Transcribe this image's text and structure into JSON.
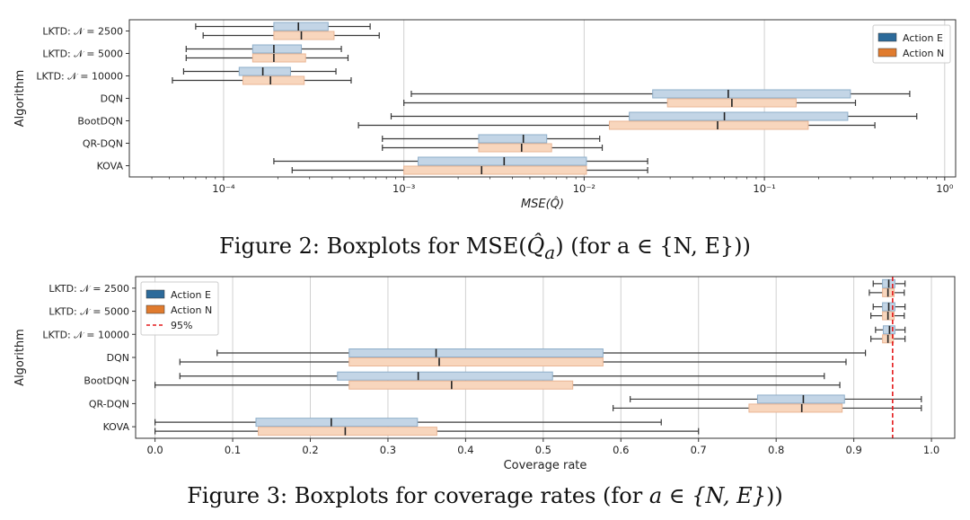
{
  "figure2": {
    "caption_prefix": "Figure 2:  Boxplots for MSE(",
    "caption_math": "Q̂",
    "caption_sub": "a",
    "caption_suffix": ")  (for a ∈ {N, E}))"
  },
  "figure3": {
    "caption_prefix": "Figure 3:  Boxplots for coverage rates (for ",
    "caption_math": "a ∈ {N, E}",
    "caption_suffix": "))"
  },
  "colors": {
    "action_e_fill": "#c3d5e6",
    "action_e_stroke": "#8eaec9",
    "action_e_legend": "#2c6a9a",
    "action_n_fill": "#f8d6bd",
    "action_n_stroke": "#eab594",
    "action_n_legend": "#e07b2e",
    "whisker": "#3a3a3a",
    "median": "#222222",
    "ref_line": "#e41a1c",
    "grid": "#d0d0d0"
  },
  "chart_data": [
    {
      "type": "boxplot",
      "title": "",
      "xlabel": "MSE(Q̂)",
      "ylabel": "Algorithm",
      "xscale": "log",
      "xlim": [
        3e-05,
        1.15
      ],
      "xticks": [
        0.0001,
        0.001,
        0.01,
        0.1,
        1
      ],
      "xtick_labels": [
        "10⁻⁴",
        "10⁻³",
        "10⁻²",
        "10⁻¹",
        "10⁰"
      ],
      "grid": true,
      "legend_position": "top-right",
      "legend": [
        "Action E",
        "Action N"
      ],
      "categories": [
        "LKTD: 𝒩 = 2500",
        "LKTD: 𝒩 = 5000",
        "LKTD: 𝒩 = 10000",
        "DQN",
        "BootDQN",
        "QR-DQN",
        "KOVA"
      ],
      "series": [
        {
          "name": "Action E",
          "boxes": [
            [
              7e-05,
              0.00019,
              0.00026,
              0.00038,
              0.00065
            ],
            [
              6.2e-05,
              0.000145,
              0.00019,
              0.00027,
              0.00045
            ],
            [
              6e-05,
              0.000122,
              0.000165,
              0.000235,
              0.00042
            ],
            [
              0.0011,
              0.024,
              0.063,
              0.3,
              0.64
            ],
            [
              0.00085,
              0.0178,
              0.06,
              0.29,
              0.7
            ],
            [
              0.00076,
              0.0026,
              0.0046,
              0.0062,
              0.0122
            ],
            [
              0.00019,
              0.0012,
              0.0036,
              0.0103,
              0.0225
            ]
          ]
        },
        {
          "name": "Action N",
          "boxes": [
            [
              7.7e-05,
              0.00019,
              0.00027,
              0.00041,
              0.00073
            ],
            [
              6.2e-05,
              0.000145,
              0.00019,
              0.000285,
              0.00049
            ],
            [
              5.2e-05,
              0.000128,
              0.000182,
              0.00028,
              0.00051
            ],
            [
              0.001,
              0.029,
              0.066,
              0.15,
              0.32
            ],
            [
              0.00056,
              0.0138,
              0.055,
              0.175,
              0.41
            ],
            [
              0.00076,
              0.0026,
              0.0045,
              0.0066,
              0.0126
            ],
            [
              0.00024,
              0.001,
              0.0027,
              0.0103,
              0.0225
            ]
          ]
        }
      ]
    },
    {
      "type": "boxplot",
      "title": "",
      "xlabel": "Coverage rate",
      "ylabel": "Algorithm",
      "xscale": "linear",
      "xlim": [
        -0.025,
        1.03
      ],
      "xticks": [
        0.0,
        0.1,
        0.2,
        0.3,
        0.4,
        0.5,
        0.6,
        0.7,
        0.8,
        0.9,
        1.0
      ],
      "xtick_labels": [
        "0.0",
        "0.1",
        "0.2",
        "0.3",
        "0.4",
        "0.5",
        "0.6",
        "0.7",
        "0.8",
        "0.9",
        "1.0"
      ],
      "grid": true,
      "legend_position": "top-left",
      "legend": [
        "Action E",
        "Action N",
        "95%"
      ],
      "reference_line": {
        "x": 0.95,
        "label": "95%"
      },
      "categories": [
        "LKTD: 𝒩 = 2500",
        "LKTD: 𝒩 = 5000",
        "LKTD: 𝒩 = 10000",
        "DQN",
        "BootDQN",
        "QR-DQN",
        "KOVA"
      ],
      "series": [
        {
          "name": "Action E",
          "boxes": [
            [
              0.925,
              0.937,
              0.945,
              0.953,
              0.966
            ],
            [
              0.925,
              0.937,
              0.945,
              0.953,
              0.966
            ],
            [
              0.928,
              0.938,
              0.946,
              0.953,
              0.966
            ],
            [
              0.08,
              0.25,
              0.362,
              0.577,
              0.915
            ],
            [
              0.032,
              0.235,
              0.339,
              0.512,
              0.862
            ],
            [
              0.612,
              0.776,
              0.835,
              0.888,
              0.987
            ],
            [
              0.0,
              0.13,
              0.227,
              0.338,
              0.652
            ]
          ]
        },
        {
          "name": "Action N",
          "boxes": [
            [
              0.92,
              0.937,
              0.944,
              0.952,
              0.965
            ],
            [
              0.922,
              0.937,
              0.944,
              0.952,
              0.965
            ],
            [
              0.922,
              0.937,
              0.944,
              0.951,
              0.966
            ],
            [
              0.032,
              0.25,
              0.366,
              0.577,
              0.89
            ],
            [
              0.0,
              0.25,
              0.382,
              0.538,
              0.882
            ],
            [
              0.59,
              0.765,
              0.833,
              0.885,
              0.987
            ],
            [
              0.0,
              0.133,
              0.245,
              0.363,
              0.7
            ]
          ]
        }
      ]
    }
  ]
}
